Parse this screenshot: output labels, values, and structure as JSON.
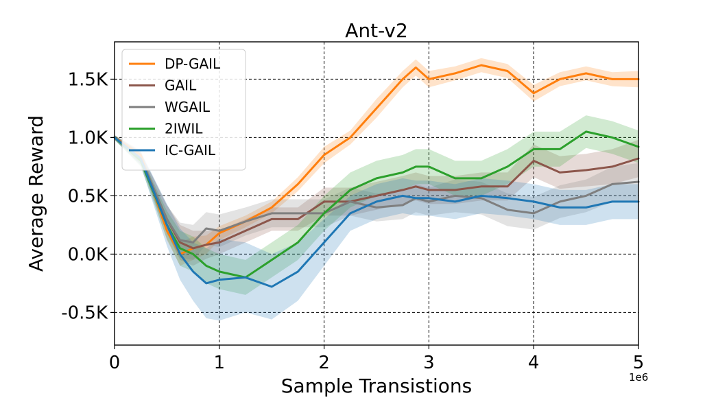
{
  "chart_data": {
    "type": "line",
    "title": "Ant-v2",
    "xlabel": "Sample Transistions",
    "ylabel": "Average Reward",
    "x_offset_text": "1e6",
    "xlim": [
      0,
      5
    ],
    "ylim": [
      -0.78,
      1.82
    ],
    "xticks": [
      0,
      1,
      2,
      3,
      4,
      5
    ],
    "xtick_labels": [
      "0",
      "1",
      "2",
      "3",
      "4",
      "5"
    ],
    "yticks": [
      -0.5,
      0.0,
      0.5,
      1.0,
      1.5
    ],
    "ytick_labels": [
      "-0.5K",
      "0.0K",
      "0.5K",
      "1.0K",
      "1.5K"
    ],
    "grid": true,
    "legend_position": "upper-left",
    "x": [
      0,
      0.25,
      0.5,
      0.625,
      0.75,
      0.875,
      1.0,
      1.25,
      1.5,
      1.75,
      2.0,
      2.25,
      2.5,
      2.75,
      2.875,
      3.0,
      3.25,
      3.5,
      3.75,
      4.0,
      4.25,
      4.5,
      4.75,
      5.0
    ],
    "series": [
      {
        "name": "DP-GAIL",
        "color": "#ff7f0e",
        "values": [
          1.0,
          0.85,
          0.2,
          0.0,
          0.05,
          0.08,
          0.18,
          0.28,
          0.4,
          0.6,
          0.85,
          1.0,
          1.25,
          1.5,
          1.6,
          1.5,
          1.55,
          1.62,
          1.57,
          1.38,
          1.5,
          1.55,
          1.5,
          1.5
        ],
        "std": [
          0.02,
          0.04,
          0.08,
          0.1,
          0.1,
          0.08,
          0.06,
          0.05,
          0.05,
          0.06,
          0.07,
          0.06,
          0.08,
          0.07,
          0.07,
          0.07,
          0.06,
          0.06,
          0.06,
          0.07,
          0.06,
          0.06,
          0.06,
          0.07
        ]
      },
      {
        "name": "GAIL",
        "color": "#8c564b",
        "values": [
          1.0,
          0.82,
          0.3,
          0.1,
          0.05,
          0.08,
          0.1,
          0.2,
          0.3,
          0.3,
          0.45,
          0.45,
          0.5,
          0.55,
          0.58,
          0.55,
          0.55,
          0.58,
          0.58,
          0.8,
          0.7,
          0.72,
          0.75,
          0.82
        ],
        "std": [
          0.02,
          0.05,
          0.12,
          0.15,
          0.15,
          0.12,
          0.1,
          0.1,
          0.1,
          0.1,
          0.12,
          0.12,
          0.12,
          0.12,
          0.12,
          0.12,
          0.12,
          0.12,
          0.12,
          0.14,
          0.14,
          0.14,
          0.15,
          0.16
        ]
      },
      {
        "name": "WGAIL",
        "color": "#7f7f7f",
        "values": [
          1.0,
          0.82,
          0.3,
          0.12,
          0.1,
          0.22,
          0.2,
          0.28,
          0.35,
          0.35,
          0.35,
          0.45,
          0.4,
          0.42,
          0.48,
          0.45,
          0.5,
          0.48,
          0.38,
          0.35,
          0.45,
          0.5,
          0.6,
          0.62
        ],
        "std": [
          0.02,
          0.05,
          0.12,
          0.15,
          0.15,
          0.14,
          0.14,
          0.12,
          0.12,
          0.12,
          0.12,
          0.12,
          0.12,
          0.12,
          0.12,
          0.12,
          0.14,
          0.14,
          0.14,
          0.14,
          0.14,
          0.14,
          0.15,
          0.16
        ]
      },
      {
        "name": "2IWIL",
        "color": "#2ca02c",
        "values": [
          1.0,
          0.8,
          0.25,
          0.05,
          0.0,
          -0.1,
          -0.15,
          -0.2,
          -0.05,
          0.1,
          0.35,
          0.55,
          0.65,
          0.7,
          0.75,
          0.75,
          0.65,
          0.65,
          0.75,
          0.9,
          0.9,
          1.05,
          1.0,
          0.92
        ],
        "std": [
          0.02,
          0.05,
          0.12,
          0.15,
          0.15,
          0.15,
          0.15,
          0.15,
          0.15,
          0.15,
          0.15,
          0.15,
          0.15,
          0.15,
          0.15,
          0.15,
          0.15,
          0.15,
          0.15,
          0.15,
          0.15,
          0.14,
          0.14,
          0.14
        ]
      },
      {
        "name": "IC-GAIL",
        "color": "#1f77b4",
        "values": [
          1.0,
          0.82,
          0.25,
          0.0,
          -0.15,
          -0.25,
          -0.22,
          -0.2,
          -0.28,
          -0.15,
          0.1,
          0.35,
          0.45,
          0.5,
          0.48,
          0.48,
          0.45,
          0.5,
          0.48,
          0.45,
          0.4,
          0.4,
          0.45,
          0.45
        ],
        "std": [
          0.02,
          0.06,
          0.18,
          0.22,
          0.25,
          0.3,
          0.35,
          0.3,
          0.28,
          0.25,
          0.2,
          0.15,
          0.15,
          0.15,
          0.15,
          0.15,
          0.15,
          0.15,
          0.15,
          0.15,
          0.15,
          0.15,
          0.15,
          0.15
        ]
      }
    ]
  }
}
